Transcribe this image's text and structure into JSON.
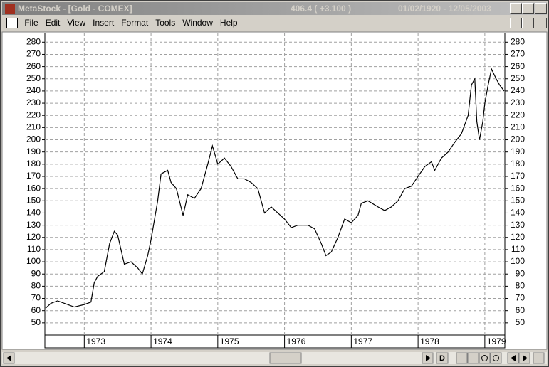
{
  "window": {
    "title": "MetaStock - [Gold - COMEX]",
    "quote": "406.4 ( +3.100 )",
    "date_range": "01/02/1920 - 12/05/2003"
  },
  "menu": [
    "File",
    "Edit",
    "View",
    "Insert",
    "Format",
    "Tools",
    "Window",
    "Help"
  ],
  "scroll_buttons": {
    "period": "D"
  },
  "chart_data": {
    "type": "line",
    "x": [
      1972.42,
      1972.5,
      1972.6,
      1972.75,
      1972.85,
      1973.0,
      1973.1,
      1973.15,
      1973.2,
      1973.3,
      1973.38,
      1973.45,
      1973.5,
      1973.55,
      1973.6,
      1973.7,
      1973.8,
      1973.87,
      1973.95,
      1974.0,
      1974.1,
      1974.15,
      1974.25,
      1974.3,
      1974.38,
      1974.48,
      1974.55,
      1974.65,
      1974.75,
      1974.85,
      1974.92,
      1975.0,
      1975.1,
      1975.2,
      1975.3,
      1975.4,
      1975.5,
      1975.6,
      1975.7,
      1975.8,
      1975.9,
      1976.0,
      1976.1,
      1976.2,
      1976.35,
      1976.45,
      1976.55,
      1976.62,
      1976.7,
      1976.8,
      1976.9,
      1977.0,
      1977.1,
      1977.15,
      1977.25,
      1977.4,
      1977.5,
      1977.6,
      1977.7,
      1977.8,
      1977.9,
      1978.0,
      1978.1,
      1978.2,
      1978.25,
      1978.35,
      1978.45,
      1978.55,
      1978.65,
      1978.75,
      1978.8,
      1978.85,
      1978.88,
      1978.92,
      1978.97,
      1979.0,
      1979.05,
      1979.1,
      1979.17,
      1979.22,
      1979.29
    ],
    "series": [
      {
        "name": "Gold - COMEX",
        "color": "#000000",
        "values": [
          62,
          66,
          68,
          65,
          63,
          65,
          67,
          83,
          88,
          92,
          115,
          125,
          122,
          110,
          98,
          100,
          95,
          90,
          105,
          118,
          150,
          172,
          175,
          165,
          160,
          138,
          155,
          152,
          160,
          180,
          195,
          180,
          185,
          178,
          168,
          168,
          165,
          160,
          140,
          145,
          140,
          135,
          128,
          130,
          130,
          127,
          115,
          105,
          108,
          120,
          135,
          132,
          138,
          148,
          150,
          145,
          142,
          145,
          150,
          160,
          162,
          170,
          178,
          182,
          175,
          185,
          190,
          198,
          205,
          220,
          245,
          250,
          215,
          200,
          215,
          230,
          245,
          258,
          250,
          245,
          240
        ]
      }
    ],
    "xlim": [
      1972.41,
      1979.3
    ],
    "xticks": [
      1973,
      1974,
      1975,
      1976,
      1977,
      1978,
      1979
    ],
    "ylim": [
      40,
      286
    ],
    "yticks": [
      50,
      60,
      70,
      80,
      90,
      100,
      110,
      120,
      130,
      140,
      150,
      160,
      170,
      180,
      190,
      200,
      210,
      220,
      230,
      240,
      250,
      260,
      270,
      280
    ],
    "grid": true
  }
}
